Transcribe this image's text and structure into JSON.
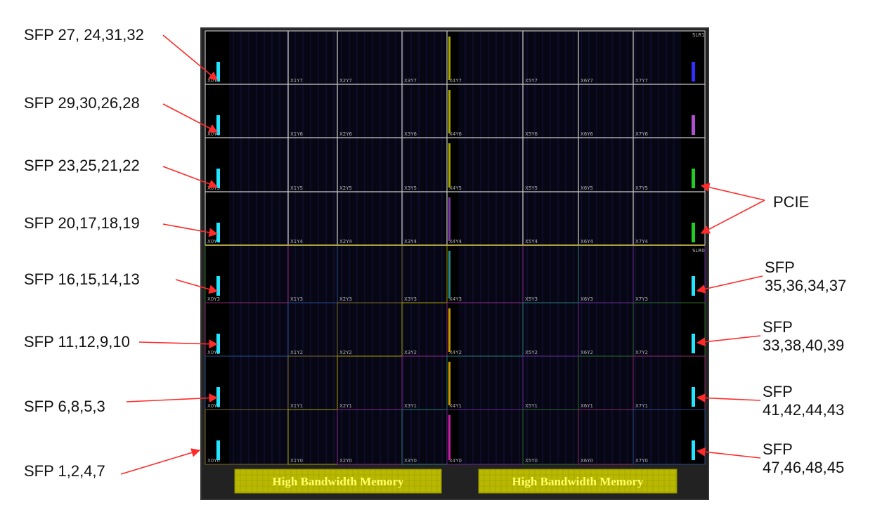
{
  "labels_left": [
    "SFP 27, 24,31,32",
    "SFP 29,30,26,28",
    "SFP 23,25,21,22",
    "SFP 20,17,18,19",
    "SFP 16,15,14,13",
    "SFP 11,12,9,10",
    "SFP 6,8,5,3",
    "SFP 1,2,4,7"
  ],
  "labels_right": {
    "pcie": "PCIE",
    "sfp_groups": [
      {
        "title": "SFP",
        "numbers": "35,36,34,37"
      },
      {
        "title": "SFP",
        "numbers": "33,38,40,39"
      },
      {
        "title": "SFP",
        "numbers": "41,42,44,43"
      },
      {
        "title": "SFP",
        "numbers": "47,46,48,45"
      }
    ]
  },
  "slr_labels": {
    "top": "SLR1",
    "bottom": "SLR0"
  },
  "hbm_labels": [
    "High Bandwidth Memory",
    "High Bandwidth Memory"
  ],
  "clock_region_labels": [
    [
      "X0Y7",
      "X1Y7",
      "X2Y7",
      "X3Y7",
      "X4Y7",
      "X5Y7",
      "X6Y7",
      "X7Y7"
    ],
    [
      "X0Y6",
      "X1Y6",
      "X2Y6",
      "X3Y6",
      "X4Y6",
      "X5Y6",
      "X6Y6",
      "X7Y6"
    ],
    [
      "X0Y5",
      "X1Y5",
      "X2Y5",
      "X3Y5",
      "X4Y5",
      "X5Y5",
      "X6Y5",
      "X7Y5"
    ],
    [
      "X0Y4",
      "X1Y4",
      "X2Y4",
      "X3Y4",
      "X4Y4",
      "X5Y4",
      "X6Y4",
      "X7Y4"
    ],
    [
      "X0Y3",
      "X1Y3",
      "X2Y3",
      "X3Y3",
      "X4Y3",
      "X5Y3",
      "X6Y3",
      "X7Y3"
    ],
    [
      "X0Y2",
      "X1Y2",
      "X2Y2",
      "X3Y2",
      "X4Y2",
      "X5Y2",
      "X6Y2",
      "X7Y2"
    ],
    [
      "X0Y1",
      "X1Y1",
      "X2Y1",
      "X3Y1",
      "X4Y1",
      "X5Y1",
      "X6Y1",
      "X7Y1"
    ],
    [
      "X0Y0",
      "X1Y0",
      "X2Y0",
      "X3Y0",
      "X4Y0",
      "X5Y0",
      "X6Y0",
      "X7Y0"
    ]
  ],
  "colors": {
    "fabric": "#060614",
    "arrow": "#ff2a2a",
    "transceiver": "#22e6ff",
    "pcie": "#22cc22",
    "hbm_fill": "#b8b800",
    "hbm_text": "#ffff66",
    "grid_top": "#bbbbbb"
  }
}
